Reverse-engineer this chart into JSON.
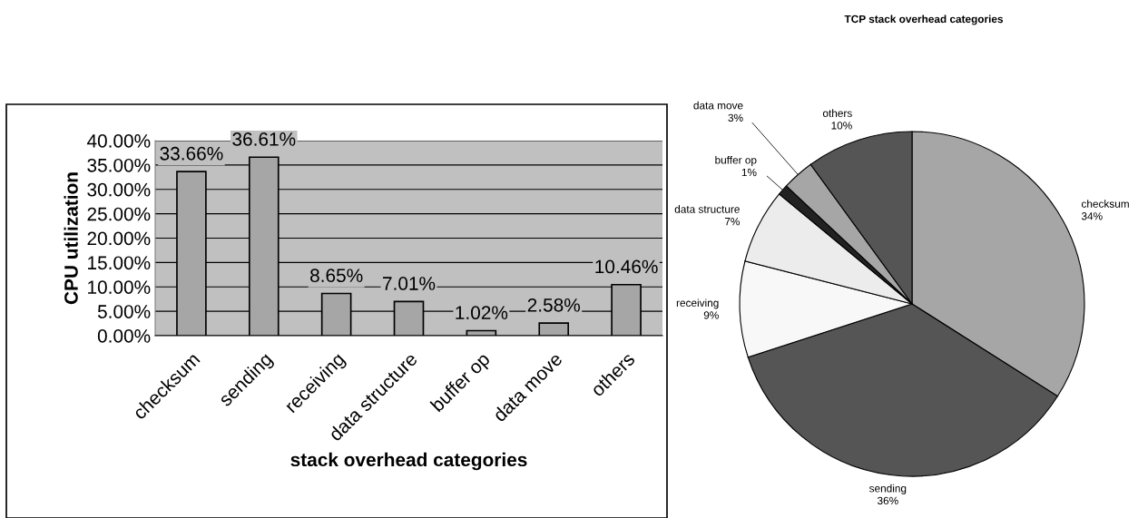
{
  "chart_data": [
    {
      "type": "bar",
      "xlabel": "stack overhead categories",
      "ylabel": "CPU utilization",
      "categories": [
        "checksum",
        "sending",
        "receiving",
        "data structure",
        "buffer op",
        "data move",
        "others"
      ],
      "values": [
        33.66,
        36.61,
        8.65,
        7.01,
        1.02,
        2.58,
        10.46
      ],
      "value_labels": [
        "33.66%",
        "36.61%",
        "8.65%",
        "7.01%",
        "1.02%",
        "2.58%",
        "10.46%"
      ],
      "color": "#a6a6a6",
      "ylim": [
        0,
        40
      ],
      "yticks": [
        {
          "value": 0,
          "label": "0.00%"
        },
        {
          "value": 5,
          "label": "5.00%"
        },
        {
          "value": 10,
          "label": "10.00%"
        },
        {
          "value": 15,
          "label": "15.00%"
        },
        {
          "value": 20,
          "label": "20.00%"
        },
        {
          "value": 25,
          "label": "25.00%"
        },
        {
          "value": 30,
          "label": "30.00%"
        },
        {
          "value": 35,
          "label": "35.00%"
        },
        {
          "value": 40,
          "label": "40.00%"
        }
      ],
      "grid": "y",
      "legend": false
    },
    {
      "type": "pie",
      "title": "TCP stack overhead categories",
      "categories": [
        "checksum",
        "sending",
        "receiving",
        "data structure",
        "buffer op",
        "data move",
        "others"
      ],
      "values": [
        34,
        36,
        9,
        7,
        1,
        3,
        10
      ],
      "value_labels": [
        "34%",
        "36%",
        "9%",
        "7%",
        "1%",
        "3%",
        "10%"
      ],
      "colors": [
        "#a6a6a6",
        "#555555",
        "#f8f8f8",
        "#ececec",
        "#222222",
        "#a6a6a6",
        "#555555"
      ],
      "legend": false
    }
  ]
}
